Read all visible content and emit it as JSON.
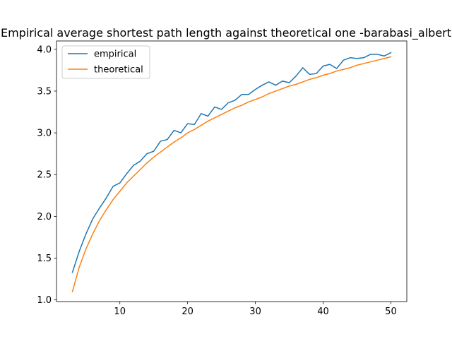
{
  "chart_data": {
    "type": "line",
    "title": "Empirical average shortest path length against theoretical one -barabasi_albert",
    "xlabel": "",
    "ylabel": "",
    "xlim": [
      0.65,
      52.35
    ],
    "ylim": [
      0.98,
      4.1
    ],
    "xticks": [
      10,
      20,
      30,
      40,
      50
    ],
    "yticks": [
      1.0,
      1.5,
      2.0,
      2.5,
      3.0,
      3.5,
      4.0
    ],
    "xtick_labels": [
      "10",
      "20",
      "30",
      "40",
      "50"
    ],
    "ytick_labels": [
      "1.0",
      "1.5",
      "2.0",
      "2.5",
      "3.0",
      "3.5",
      "4.0"
    ],
    "grid": false,
    "legend": "top-left",
    "x": [
      3,
      4,
      5,
      6,
      7,
      8,
      9,
      10,
      11,
      12,
      13,
      14,
      15,
      16,
      17,
      18,
      19,
      20,
      21,
      22,
      23,
      24,
      25,
      26,
      27,
      28,
      29,
      30,
      31,
      32,
      33,
      34,
      35,
      36,
      37,
      38,
      39,
      40,
      41,
      42,
      43,
      44,
      45,
      46,
      47,
      48,
      49,
      50
    ],
    "series": [
      {
        "name": "empirical",
        "color": "#1f77b4",
        "values": [
          1.33,
          1.58,
          1.79,
          1.97,
          2.1,
          2.22,
          2.36,
          2.4,
          2.51,
          2.61,
          2.66,
          2.75,
          2.78,
          2.9,
          2.92,
          3.03,
          3.0,
          3.11,
          3.1,
          3.23,
          3.2,
          3.31,
          3.28,
          3.36,
          3.39,
          3.46,
          3.46,
          3.52,
          3.57,
          3.61,
          3.57,
          3.62,
          3.6,
          3.68,
          3.78,
          3.7,
          3.71,
          3.8,
          3.82,
          3.77,
          3.87,
          3.9,
          3.89,
          3.9,
          3.94,
          3.94,
          3.92,
          3.96
        ]
      },
      {
        "name": "theoretical",
        "color": "#ff7f0e",
        "values": [
          1.1,
          1.39,
          1.61,
          1.79,
          1.95,
          2.08,
          2.2,
          2.3,
          2.4,
          2.48,
          2.56,
          2.64,
          2.71,
          2.77,
          2.83,
          2.89,
          2.94,
          3.0,
          3.04,
          3.09,
          3.14,
          3.18,
          3.22,
          3.26,
          3.3,
          3.33,
          3.37,
          3.4,
          3.43,
          3.47,
          3.5,
          3.53,
          3.56,
          3.58,
          3.61,
          3.64,
          3.66,
          3.69,
          3.71,
          3.74,
          3.76,
          3.78,
          3.81,
          3.83,
          3.85,
          3.87,
          3.89,
          3.91
        ]
      }
    ]
  }
}
